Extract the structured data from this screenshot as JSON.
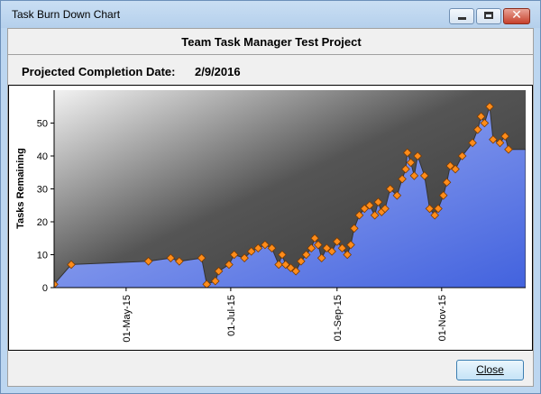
{
  "window": {
    "title": "Task Burn Down Chart"
  },
  "header": {
    "chart_title": "Team Task Manager Test Project",
    "projected_label": "Projected Completion Date:",
    "projected_value": "2/9/2016"
  },
  "footer": {
    "close_label": "Close"
  },
  "colors": {
    "area_top": "#aebcf6",
    "area_bottom": "#4262de",
    "marker": "#ff8c1a",
    "marker_border": "#7a3b00"
  },
  "chart_data": {
    "type": "area",
    "title": "",
    "xlabel": "",
    "ylabel": "Tasks Remaining",
    "ylim": [
      0,
      60
    ],
    "xlim": [
      "2015-03-20",
      "2015-12-20"
    ],
    "yticks": [
      0,
      10,
      20,
      30,
      40,
      50
    ],
    "xticks": [
      "01-May-15",
      "01-Jul-15",
      "01-Sep-15",
      "01-Nov-15"
    ],
    "xtick_dates": [
      "2015-05-01",
      "2015-07-01",
      "2015-09-01",
      "2015-11-01"
    ],
    "grid": false,
    "series": [
      {
        "points": [
          [
            "2015-03-20",
            1
          ],
          [
            "2015-03-30",
            7
          ],
          [
            "2015-05-14",
            8
          ],
          [
            "2015-05-27",
            9
          ],
          [
            "2015-06-01",
            8
          ],
          [
            "2015-06-14",
            9
          ],
          [
            "2015-06-17",
            1
          ],
          [
            "2015-06-22",
            2
          ],
          [
            "2015-06-24",
            5
          ],
          [
            "2015-06-30",
            7
          ],
          [
            "2015-07-03",
            10
          ],
          [
            "2015-07-09",
            9
          ],
          [
            "2015-07-13",
            11
          ],
          [
            "2015-07-17",
            12
          ],
          [
            "2015-07-21",
            13
          ],
          [
            "2015-07-25",
            12
          ],
          [
            "2015-07-29",
            7
          ],
          [
            "2015-07-31",
            10
          ],
          [
            "2015-08-02",
            7
          ],
          [
            "2015-08-05",
            6
          ],
          [
            "2015-08-08",
            5
          ],
          [
            "2015-08-11",
            8
          ],
          [
            "2015-08-14",
            10
          ],
          [
            "2015-08-17",
            12
          ],
          [
            "2015-08-19",
            15
          ],
          [
            "2015-08-21",
            13
          ],
          [
            "2015-08-23",
            9
          ],
          [
            "2015-08-26",
            12
          ],
          [
            "2015-08-29",
            11
          ],
          [
            "2015-09-01",
            14
          ],
          [
            "2015-09-04",
            12
          ],
          [
            "2015-09-07",
            10
          ],
          [
            "2015-09-09",
            13
          ],
          [
            "2015-09-11",
            18
          ],
          [
            "2015-09-14",
            22
          ],
          [
            "2015-09-17",
            24
          ],
          [
            "2015-09-20",
            25
          ],
          [
            "2015-09-23",
            22
          ],
          [
            "2015-09-25",
            26
          ],
          [
            "2015-09-27",
            23
          ],
          [
            "2015-09-29",
            24
          ],
          [
            "2015-10-02",
            30
          ],
          [
            "2015-10-06",
            28
          ],
          [
            "2015-10-09",
            33
          ],
          [
            "2015-10-11",
            36
          ],
          [
            "2015-10-12",
            41
          ],
          [
            "2015-10-14",
            38
          ],
          [
            "2015-10-16",
            34
          ],
          [
            "2015-10-18",
            40
          ],
          [
            "2015-10-22",
            34
          ],
          [
            "2015-10-25",
            24
          ],
          [
            "2015-10-28",
            22
          ],
          [
            "2015-10-30",
            24
          ],
          [
            "2015-11-02",
            28
          ],
          [
            "2015-11-04",
            32
          ],
          [
            "2015-11-06",
            37
          ],
          [
            "2015-11-09",
            36
          ],
          [
            "2015-11-13",
            40
          ],
          [
            "2015-11-19",
            44
          ],
          [
            "2015-11-22",
            48
          ],
          [
            "2015-11-24",
            52
          ],
          [
            "2015-11-26",
            50
          ],
          [
            "2015-11-29",
            55
          ],
          [
            "2015-12-01",
            45
          ],
          [
            "2015-12-05",
            44
          ],
          [
            "2015-12-08",
            46
          ],
          [
            "2015-12-10",
            42
          ]
        ]
      }
    ]
  }
}
